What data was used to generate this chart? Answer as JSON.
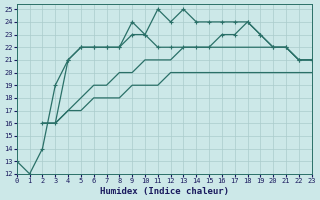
{
  "xlabel": "Humidex (Indice chaleur)",
  "bg_color": "#cce8e8",
  "grid_color": "#aacccc",
  "line_color": "#2a7068",
  "xlim": [
    0,
    23
  ],
  "ylim": [
    12,
    25.4
  ],
  "xticks": [
    0,
    1,
    2,
    3,
    4,
    5,
    6,
    7,
    8,
    9,
    10,
    11,
    12,
    13,
    14,
    15,
    16,
    17,
    18,
    19,
    20,
    21,
    22,
    23
  ],
  "yticks": [
    12,
    13,
    14,
    15,
    16,
    17,
    18,
    19,
    20,
    21,
    22,
    23,
    24,
    25
  ],
  "line1_x": [
    0,
    1,
    2,
    3,
    4,
    5,
    6,
    7,
    8,
    9,
    10,
    11,
    12,
    13,
    14,
    15,
    16,
    17,
    18,
    19,
    20,
    21,
    22,
    23
  ],
  "line1_y": [
    13,
    12,
    14,
    19,
    21,
    22,
    22,
    22,
    22,
    24,
    23,
    25,
    24,
    25,
    24,
    24,
    24,
    24,
    24,
    23,
    22,
    22,
    21,
    21
  ],
  "line2_x": [
    2,
    3,
    4,
    5,
    6,
    7,
    8,
    9,
    10,
    11,
    12,
    13,
    14,
    15,
    16,
    17,
    18,
    19,
    20,
    21,
    22,
    23
  ],
  "line2_y": [
    16,
    16,
    21,
    22,
    22,
    22,
    22,
    23,
    23,
    22,
    22,
    22,
    22,
    22,
    23,
    23,
    24,
    23,
    22,
    22,
    21,
    21
  ],
  "line3_x": [
    2,
    3,
    4,
    5,
    6,
    7,
    8,
    9,
    10,
    11,
    12,
    13,
    14,
    15,
    16,
    17,
    18,
    19,
    20,
    21,
    22,
    23
  ],
  "line3_y": [
    16,
    16,
    17,
    18,
    19,
    19,
    20,
    20,
    21,
    21,
    21,
    22,
    22,
    22,
    22,
    22,
    22,
    22,
    22,
    22,
    21,
    21
  ],
  "line4_x": [
    2,
    3,
    4,
    5,
    6,
    7,
    8,
    9,
    10,
    11,
    12,
    13,
    14,
    15,
    16,
    17,
    18,
    19,
    20,
    21,
    22,
    23
  ],
  "line4_y": [
    16,
    16,
    17,
    17,
    18,
    18,
    18,
    19,
    19,
    19,
    20,
    20,
    20,
    20,
    20,
    20,
    20,
    20,
    20,
    20,
    20,
    20
  ]
}
